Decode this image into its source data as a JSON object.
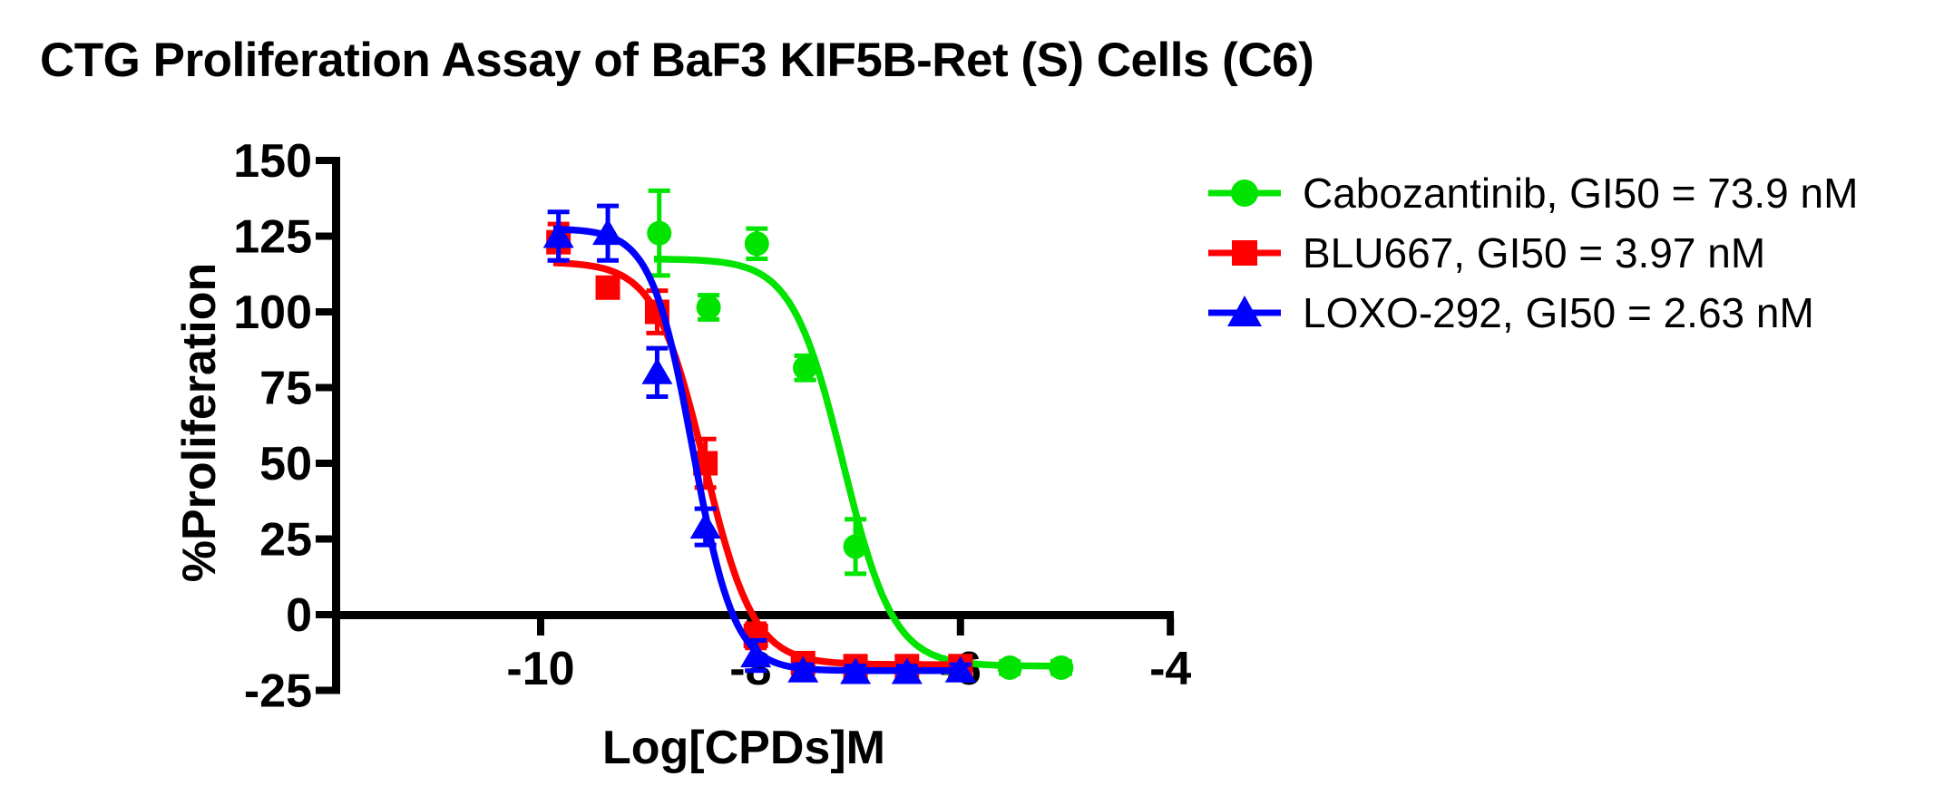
{
  "chart_data": {
    "type": "scatter",
    "title": "CTG Proliferation Assay of BaF3 KIF5B-Ret (S) Cells (C6)",
    "xlabel": "Log[CPDs]M",
    "ylabel": "%Proliferation",
    "xlim": [
      -11.95,
      -3.8
    ],
    "ylim": [
      -25,
      150
    ],
    "xticks": [
      -10,
      -8,
      -6,
      -4
    ],
    "yticks": [
      150,
      125,
      100,
      75,
      50,
      25,
      0,
      -25
    ],
    "grid": false,
    "legend_position": "right",
    "axis_color": "#000000",
    "series": [
      {
        "name": "Cabozantinib",
        "legend_label": "Cabozantinib,  GI50 = 73.9 nM",
        "gi50": "73.9 nM",
        "color": "#00e400",
        "marker": "circle",
        "points": [
          {
            "x": -8.87,
            "y": 126,
            "err": 14
          },
          {
            "x": -8.4,
            "y": 101.5,
            "err": 4
          },
          {
            "x": -7.94,
            "y": 122.5,
            "err": 5
          },
          {
            "x": -7.48,
            "y": 81.5,
            "err": 4
          },
          {
            "x": -7.0,
            "y": 22.5,
            "err": 9
          },
          {
            "x": -6.05,
            "y": -17,
            "err": 2
          },
          {
            "x": -5.53,
            "y": -17.5,
            "err": 2
          },
          {
            "x": -5.04,
            "y": -17.5,
            "err": 2
          }
        ],
        "fit_curve": {
          "model": "4PL",
          "top": 117.5,
          "bottom": -17,
          "log_ec50": -7.12,
          "hill": 1.8,
          "x_start": -8.92,
          "x_end": -5.02
        }
      },
      {
        "name": "BLU667",
        "legend_label": "BLU667,  GI50 = 3.97 nM",
        "gi50": "3.97 nM",
        "color": "#ff0000",
        "marker": "square",
        "points": [
          {
            "x": -9.83,
            "y": 123,
            "err": 6
          },
          {
            "x": -9.36,
            "y": 108,
            "err": 2
          },
          {
            "x": -8.89,
            "y": 100,
            "err": 7
          },
          {
            "x": -8.43,
            "y": 50,
            "err": 8
          },
          {
            "x": -7.95,
            "y": -7,
            "err": 4
          },
          {
            "x": -7.5,
            "y": -16,
            "err": 2
          },
          {
            "x": -7.0,
            "y": -17,
            "err": 2
          },
          {
            "x": -6.51,
            "y": -17,
            "err": 2
          },
          {
            "x": -6.0,
            "y": -17,
            "err": 2
          }
        ],
        "fit_curve": {
          "model": "4PL",
          "top": 116.5,
          "bottom": -16.5,
          "log_ec50": -8.44,
          "hill": 1.85,
          "x_start": -9.88,
          "x_end": -5.98
        }
      },
      {
        "name": "LOXO-292",
        "legend_label": "LOXO-292,  GI50 = 2.63 nM",
        "gi50": "2.63 nM",
        "color": "#0000ff",
        "marker": "triangle",
        "points": [
          {
            "x": -9.83,
            "y": 125,
            "err": 8
          },
          {
            "x": -9.36,
            "y": 126,
            "err": 9
          },
          {
            "x": -8.89,
            "y": 80,
            "err": 8
          },
          {
            "x": -8.43,
            "y": 29,
            "err": 6
          },
          {
            "x": -7.95,
            "y": -13.5,
            "err": 5
          },
          {
            "x": -7.5,
            "y": -18.5,
            "err": 2
          },
          {
            "x": -7.0,
            "y": -19,
            "err": 2
          },
          {
            "x": -6.51,
            "y": -19,
            "err": 2
          },
          {
            "x": -6.0,
            "y": -18.5,
            "err": 2
          }
        ],
        "fit_curve": {
          "model": "4PL",
          "top": 127.5,
          "bottom": -18.5,
          "log_ec50": -8.55,
          "hill": 2.2,
          "x_start": -9.88,
          "x_end": -5.98
        }
      }
    ]
  }
}
